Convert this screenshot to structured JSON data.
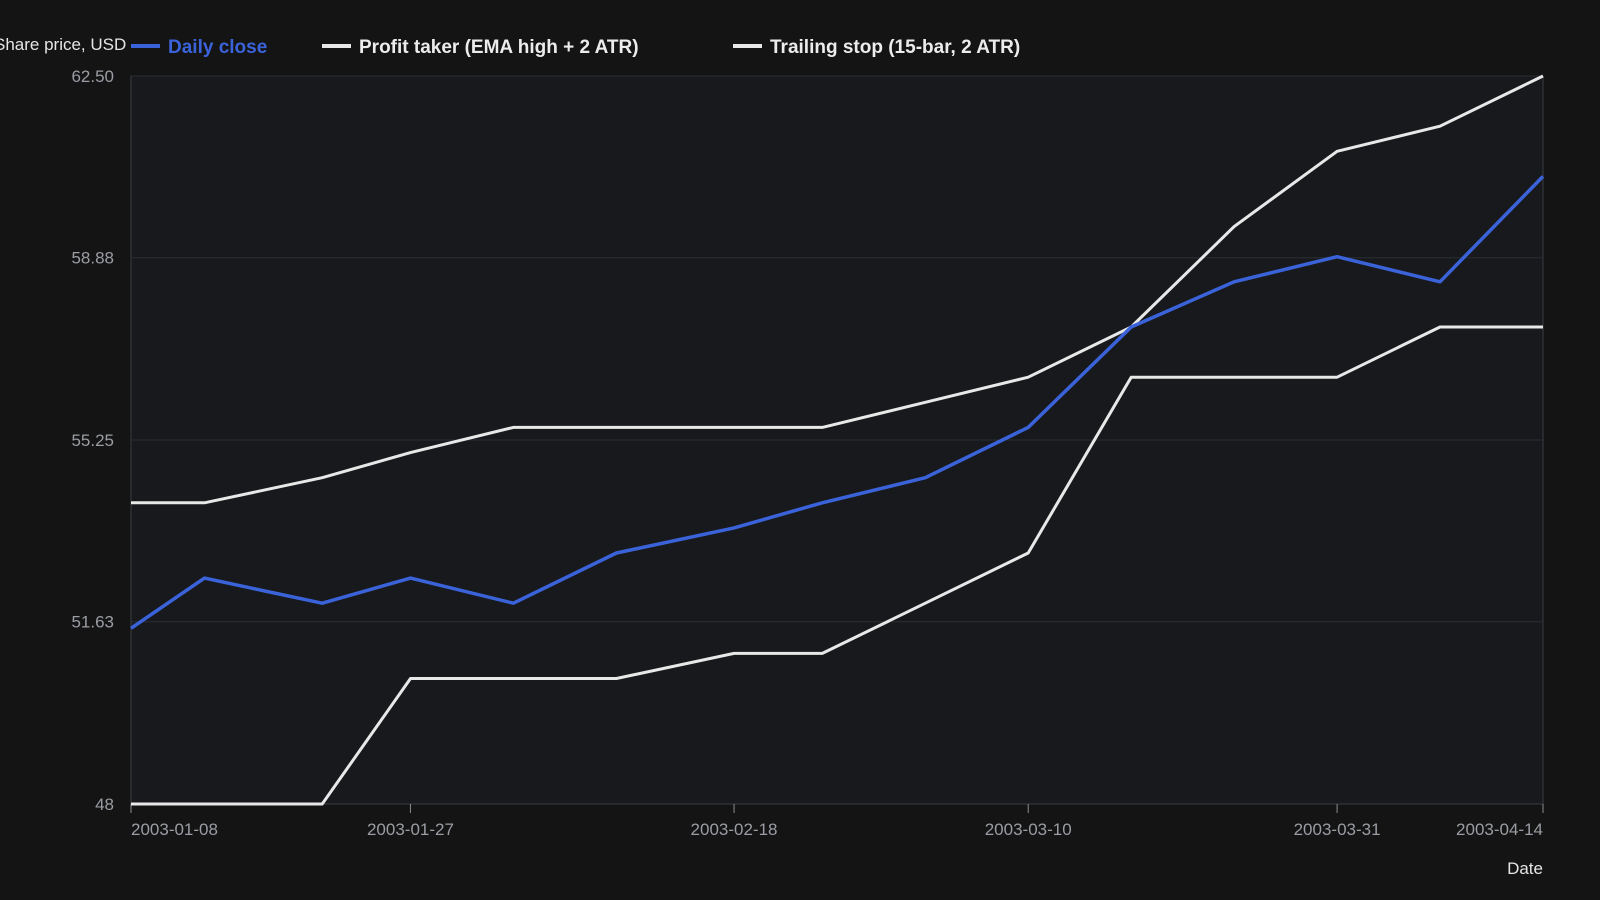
{
  "chart_data": {
    "type": "line",
    "xlabel": "Date",
    "ylabel": "Share price, USD",
    "ylim": [
      48,
      62.5
    ],
    "y_ticks": [
      "48",
      "51.63",
      "55.25",
      "58.88",
      "62.50"
    ],
    "x_ticks": [
      "2003-01-08",
      "2003-01-27",
      "2003-02-18",
      "2003-03-10",
      "2003-03-31",
      "2003-04-14"
    ],
    "grid": "horizontal",
    "legend_position": "top-left",
    "x": [
      "2003-01-08",
      "2003-01-13",
      "2003-01-21",
      "2003-01-27",
      "2003-02-03",
      "2003-02-10",
      "2003-02-18",
      "2003-02-24",
      "2003-03-03",
      "2003-03-10",
      "2003-03-17",
      "2003-03-24",
      "2003-03-31",
      "2003-04-07",
      "2003-04-14"
    ],
    "series": [
      {
        "name": "Daily close",
        "color": "#3b63d9",
        "values": [
          51.5,
          52.5,
          52.0,
          52.5,
          52.0,
          53.0,
          53.5,
          54.0,
          54.5,
          55.5,
          57.5,
          58.4,
          58.9,
          58.4,
          60.5
        ]
      },
      {
        "name": "Profit taker (EMA high + 2 ATR)",
        "color": "#e8e8e8",
        "values": [
          54.0,
          54.0,
          54.5,
          55.0,
          55.5,
          55.5,
          55.5,
          55.5,
          56.0,
          56.5,
          57.5,
          59.5,
          61.0,
          61.5,
          62.5
        ]
      },
      {
        "name": "Trailing stop (15-bar, 2 ATR)",
        "color": "#e8e8e8",
        "values": [
          48.0,
          48.0,
          48.0,
          50.5,
          50.5,
          50.5,
          51.0,
          51.0,
          52.0,
          53.0,
          56.5,
          56.5,
          56.5,
          57.5,
          57.5
        ]
      }
    ]
  }
}
